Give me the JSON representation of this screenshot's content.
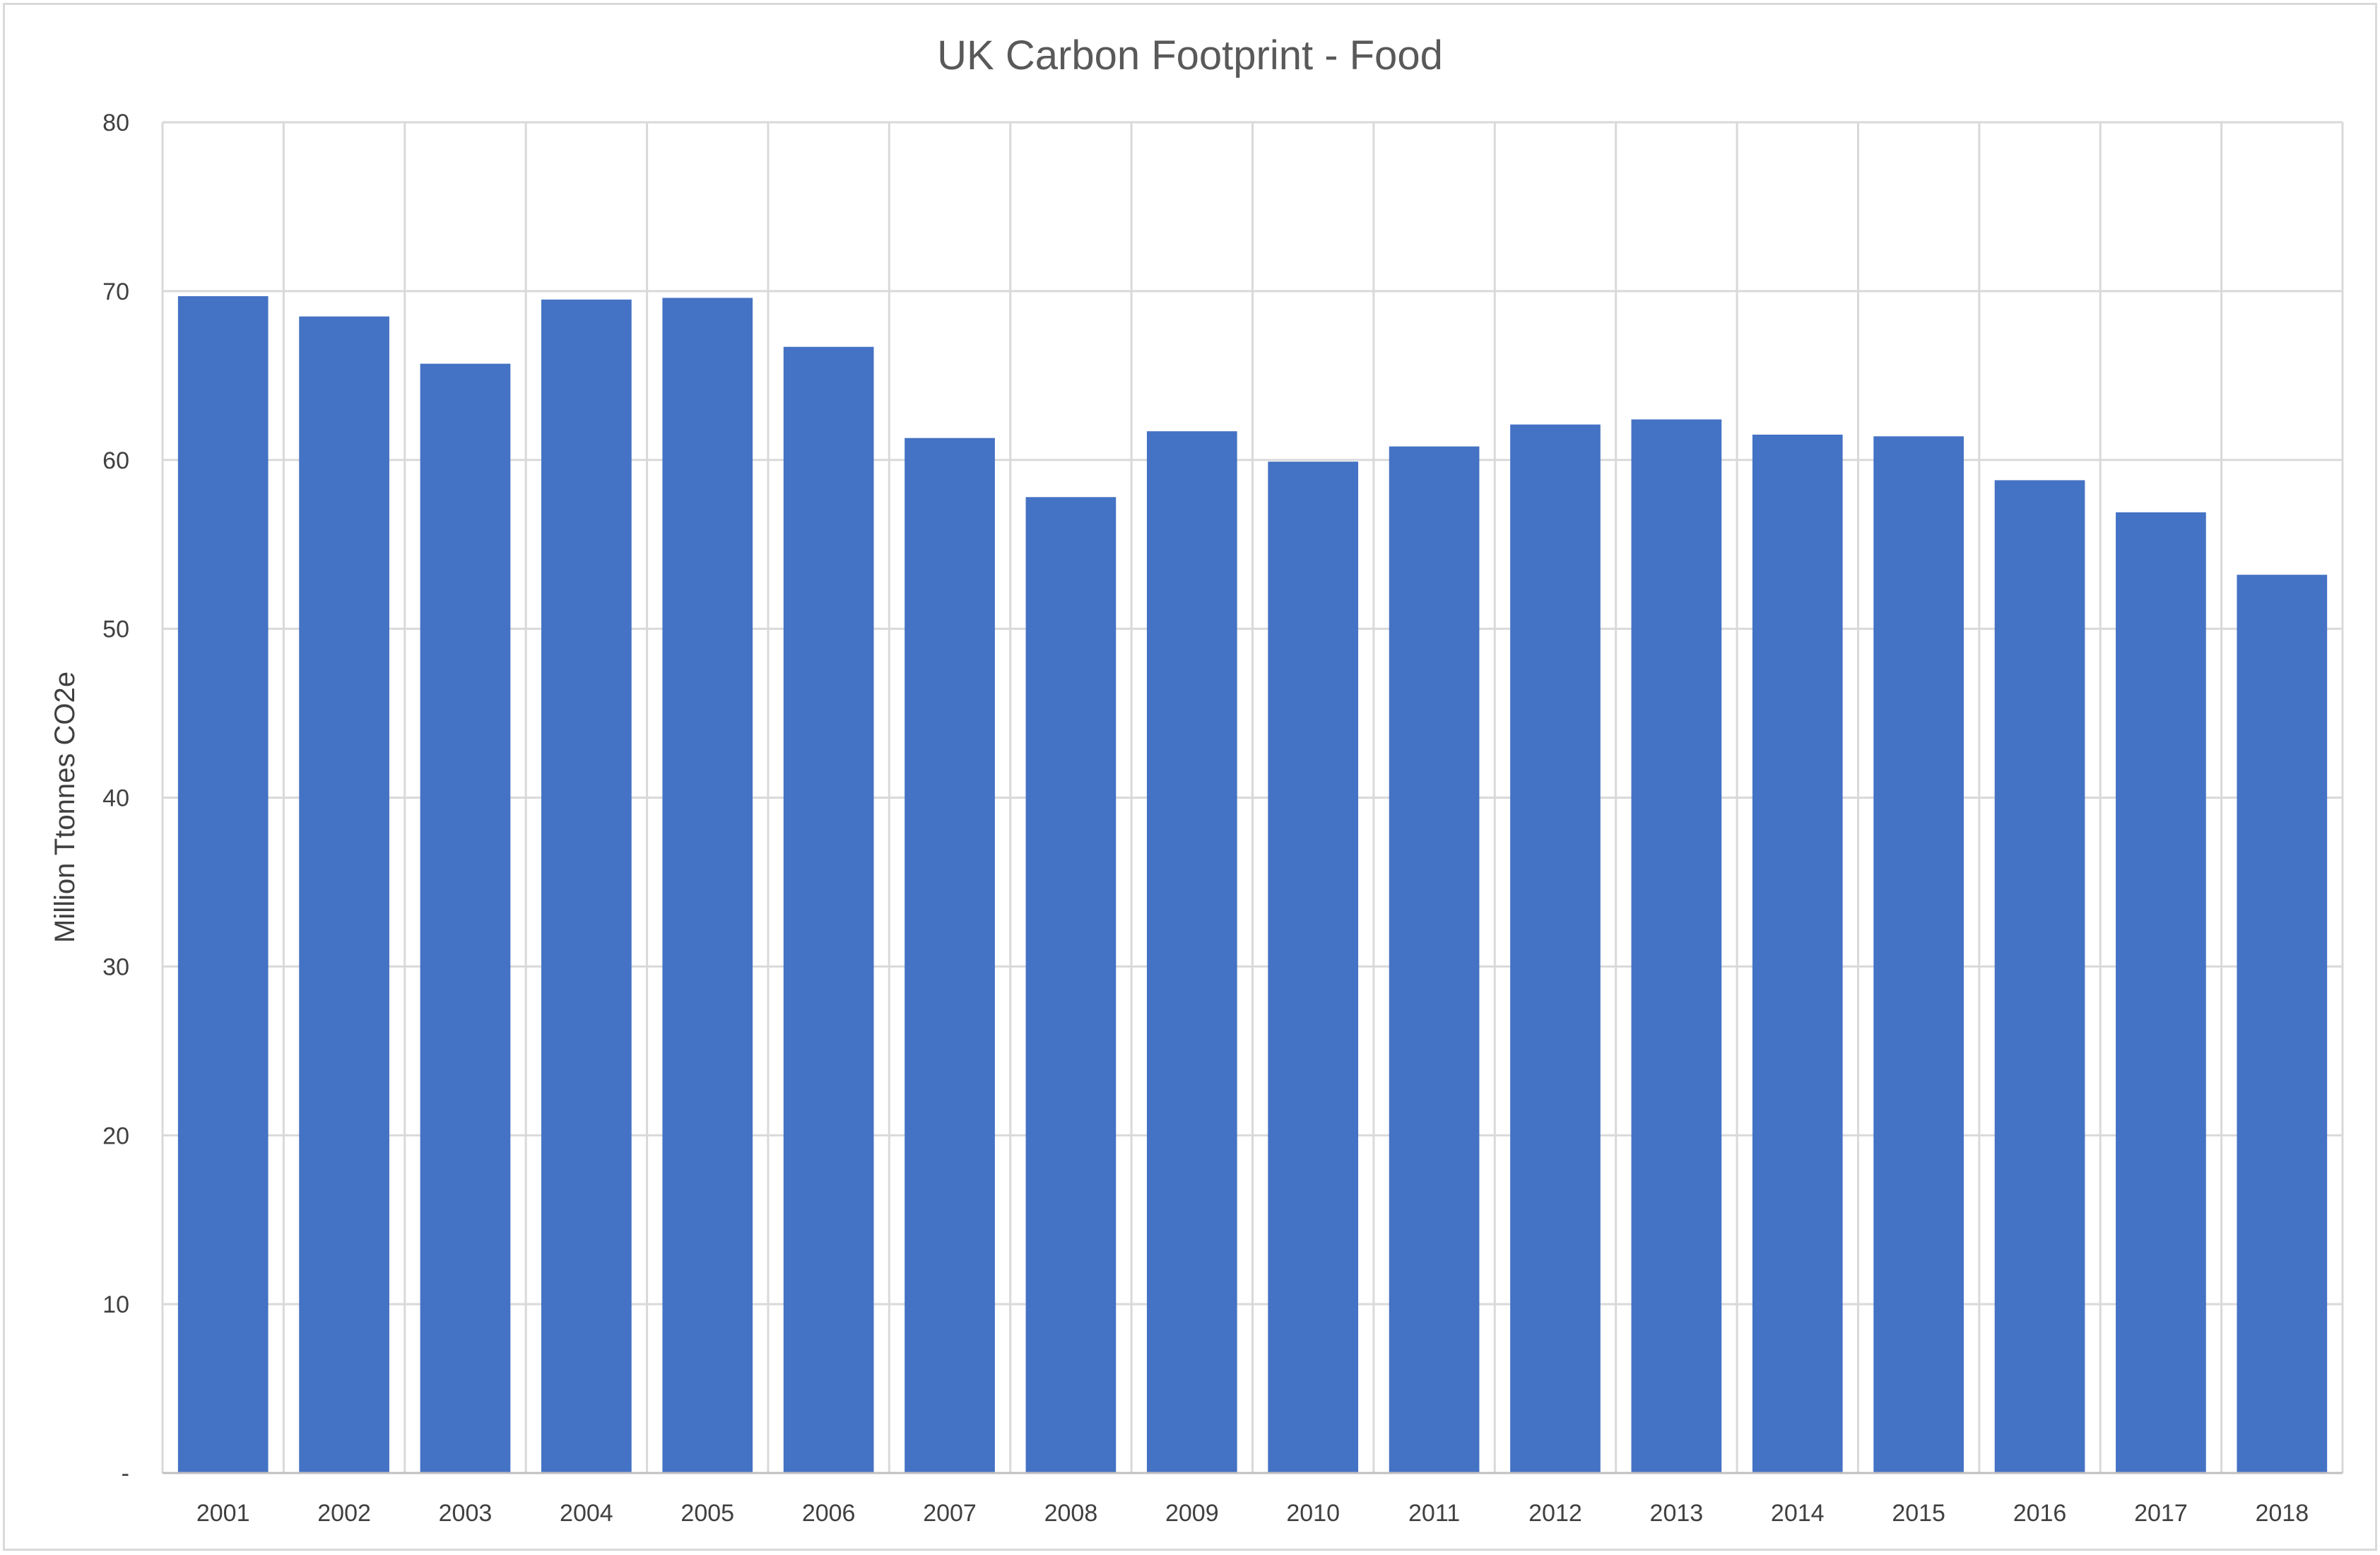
{
  "chart_data": {
    "type": "bar",
    "title": "UK Carbon Footprint - Food",
    "ylabel": "Million Ttonnes CO2e",
    "xlabel": "",
    "ylim": [
      0,
      80
    ],
    "yticks": [
      0,
      10,
      20,
      30,
      40,
      50,
      60,
      70,
      80
    ],
    "ytick_labels": [
      "-",
      "10",
      "20",
      "30",
      "40",
      "50",
      "60",
      "70",
      "80"
    ],
    "grid": true,
    "bar_color": "#4472C4",
    "categories": [
      "2001",
      "2002",
      "2003",
      "2004",
      "2005",
      "2006",
      "2007",
      "2008",
      "2009",
      "2010",
      "2011",
      "2012",
      "2013",
      "2014",
      "2015",
      "2016",
      "2017",
      "2018"
    ],
    "values": [
      69.7,
      68.5,
      65.7,
      69.5,
      69.6,
      66.7,
      61.3,
      57.8,
      61.7,
      59.9,
      60.8,
      62.1,
      62.4,
      61.5,
      61.4,
      58.8,
      56.9,
      53.2
    ]
  }
}
